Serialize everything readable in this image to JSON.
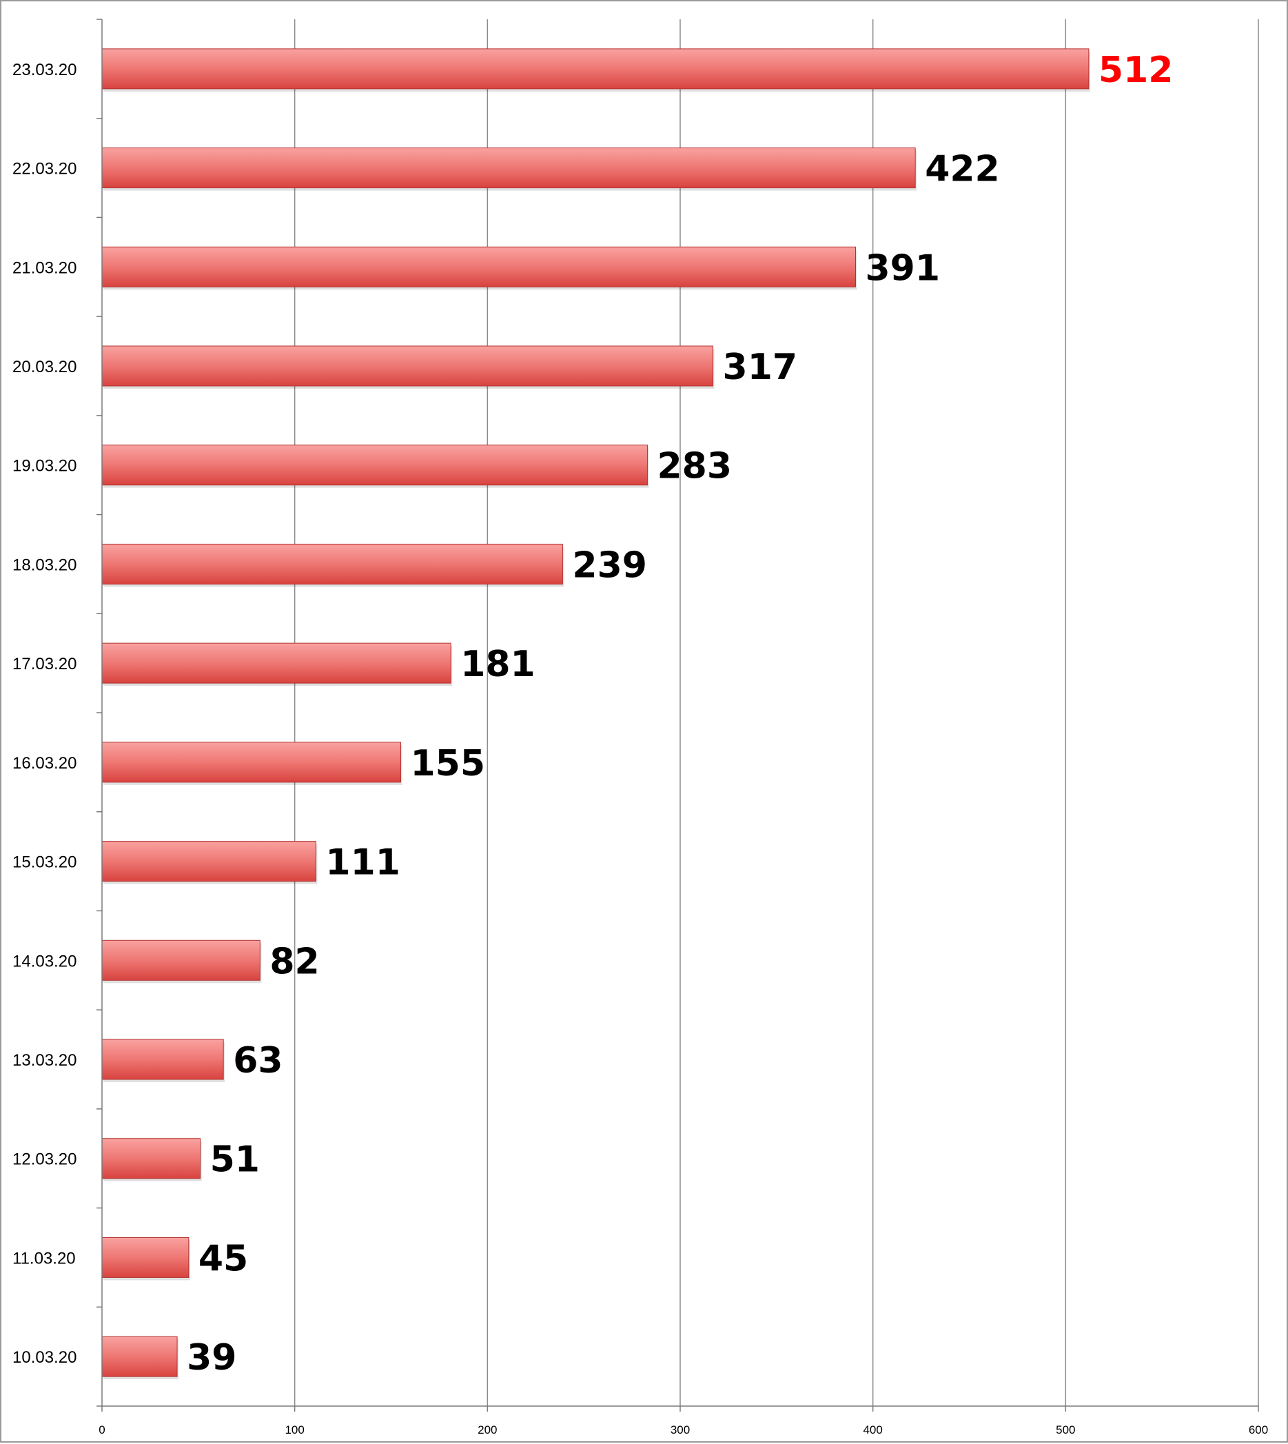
{
  "chart_data": {
    "type": "bar",
    "orientation": "horizontal",
    "title": "",
    "xlabel": "",
    "ylabel": "",
    "categories": [
      "23.03.20",
      "22.03.20",
      "21.03.20",
      "20.03.20",
      "19.03.20",
      "18.03.20",
      "17.03.20",
      "16.03.20",
      "15.03.20",
      "14.03.20",
      "13.03.20",
      "12.03.20",
      "11.03.20",
      "10.03.20"
    ],
    "values": [
      512,
      422,
      391,
      317,
      283,
      239,
      181,
      155,
      111,
      82,
      63,
      51,
      45,
      39
    ],
    "data_labels": [
      "512",
      "422",
      "391",
      "317",
      "283",
      "239",
      "181",
      "155",
      "111",
      "82",
      "63",
      "51",
      "45",
      "39"
    ],
    "xlim": [
      0,
      600
    ],
    "xticks": [
      0,
      100,
      200,
      300,
      400,
      500,
      600
    ],
    "xtick_labels": [
      "0",
      "100",
      "200",
      "300",
      "400",
      "500",
      "600"
    ],
    "grid": "vertical",
    "legend": "none",
    "colors": {
      "bar_top": "#f9a2a0",
      "bar_bottom": "#d8433f",
      "bar_edge": "#b23330",
      "label_default": "#000000",
      "label_highlight": "#ff0000",
      "grid": "#8c8c8c",
      "axis": "#7a7a7a"
    },
    "highlight_category": "23.03.20"
  }
}
